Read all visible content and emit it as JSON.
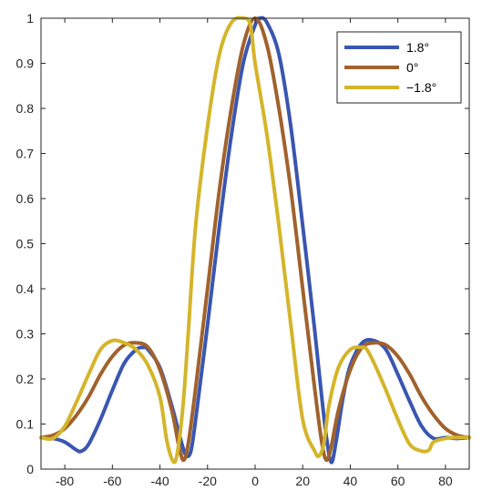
{
  "chart_data": {
    "type": "line",
    "title": "",
    "xlabel": "",
    "ylabel": "",
    "xlim": [
      -90,
      90
    ],
    "ylim": [
      0,
      1
    ],
    "xticks": [
      -80,
      -60,
      -40,
      -20,
      0,
      20,
      40,
      60,
      80
    ],
    "yticks": [
      0,
      0.1,
      0.2,
      0.3,
      0.4,
      0.5,
      0.6,
      0.7,
      0.8,
      0.9,
      1
    ],
    "xtick_labels": [
      "-80",
      "-60",
      "-40",
      "-20",
      "0",
      "20",
      "40",
      "60",
      "80"
    ],
    "ytick_labels": [
      "0",
      "0.1",
      "0.2",
      "0.3",
      "0.4",
      "0.5",
      "0.6",
      "0.7",
      "0.8",
      "0.9",
      "1"
    ],
    "grid": false,
    "legend_position": "top-right",
    "series": [
      {
        "name": "1.8°",
        "color": "#3A56B0",
        "x": [
          -90,
          -85,
          -80,
          -75,
          -73,
          -70,
          -65,
          -60,
          -55,
          -50,
          -47,
          -45,
          -40,
          -35,
          -31,
          -29,
          -27,
          -25,
          -20,
          -15,
          -10,
          -5,
          0,
          2,
          5,
          10,
          15,
          20,
          25,
          28,
          30,
          32,
          34,
          37,
          40,
          45,
          50,
          55,
          60,
          65,
          70,
          75,
          80,
          85,
          90
        ],
        "y": [
          0.07,
          0.068,
          0.06,
          0.042,
          0.04,
          0.055,
          0.11,
          0.175,
          0.235,
          0.265,
          0.27,
          0.265,
          0.225,
          0.14,
          0.06,
          0.03,
          0.04,
          0.11,
          0.32,
          0.54,
          0.74,
          0.9,
          0.985,
          1.0,
          0.99,
          0.92,
          0.76,
          0.54,
          0.31,
          0.16,
          0.07,
          0.015,
          0.06,
          0.16,
          0.23,
          0.28,
          0.285,
          0.265,
          0.21,
          0.15,
          0.095,
          0.068,
          0.07,
          0.068,
          0.07
        ]
      },
      {
        "name": "0°",
        "color": "#A0622D",
        "x": [
          -90,
          -85,
          -80,
          -75,
          -70,
          -65,
          -60,
          -55,
          -50,
          -45,
          -40,
          -35,
          -32,
          -30,
          -28,
          -25,
          -20,
          -15,
          -10,
          -5,
          0,
          5,
          10,
          15,
          20,
          25,
          28,
          30,
          32,
          35,
          40,
          45,
          50,
          55,
          60,
          65,
          70,
          75,
          80,
          85,
          90
        ],
        "y": [
          0.07,
          0.075,
          0.09,
          0.12,
          0.16,
          0.21,
          0.25,
          0.275,
          0.28,
          0.27,
          0.22,
          0.13,
          0.05,
          0.02,
          0.06,
          0.18,
          0.4,
          0.62,
          0.8,
          0.94,
          1.0,
          0.94,
          0.8,
          0.62,
          0.4,
          0.18,
          0.06,
          0.02,
          0.05,
          0.13,
          0.22,
          0.27,
          0.28,
          0.275,
          0.25,
          0.21,
          0.16,
          0.12,
          0.09,
          0.075,
          0.07
        ]
      },
      {
        "name": "−1.8°",
        "color": "#D4B52A",
        "x": [
          -90,
          -85,
          -80,
          -75,
          -70,
          -65,
          -60,
          -55,
          -50,
          -45,
          -40,
          -37,
          -34,
          -32,
          -30,
          -28,
          -25,
          -20,
          -15,
          -10,
          -5,
          -2,
          0,
          5,
          10,
          15,
          20,
          25,
          27,
          29,
          31,
          35,
          40,
          45,
          47,
          50,
          55,
          60,
          65,
          70,
          73,
          75,
          80,
          85,
          90
        ],
        "y": [
          0.07,
          0.068,
          0.095,
          0.15,
          0.21,
          0.265,
          0.285,
          0.28,
          0.265,
          0.23,
          0.16,
          0.06,
          0.015,
          0.06,
          0.16,
          0.31,
          0.54,
          0.76,
          0.92,
          0.99,
          1.0,
          0.985,
          0.9,
          0.74,
          0.54,
          0.32,
          0.11,
          0.04,
          0.03,
          0.06,
          0.14,
          0.225,
          0.265,
          0.27,
          0.265,
          0.235,
          0.175,
          0.11,
          0.055,
          0.04,
          0.042,
          0.06,
          0.068,
          0.07,
          0.07
        ]
      }
    ]
  }
}
